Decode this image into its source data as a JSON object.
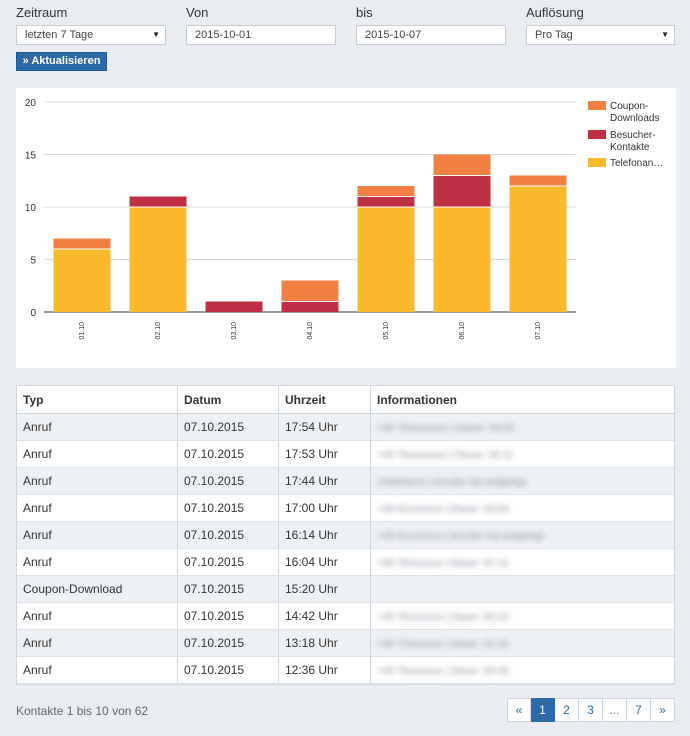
{
  "filters": {
    "zeitraum": {
      "label": "Zeitraum",
      "value": "letzten 7 Tage"
    },
    "von": {
      "label": "Von",
      "value": "2015-10-01"
    },
    "bis": {
      "label": "bis",
      "value": "2015-10-07"
    },
    "aufloesung": {
      "label": "Auflösung",
      "value": "Pro Tag"
    }
  },
  "update_button": "» Aktualisieren",
  "chart_data": {
    "type": "bar",
    "stacked": true,
    "categories": [
      "01.10",
      "02.10",
      "03.10",
      "04.10",
      "05.10",
      "06.10",
      "07.10"
    ],
    "series": [
      {
        "name": "Telefonan…",
        "color": "#f9b92b",
        "values": [
          6,
          10,
          0,
          0,
          10,
          10,
          12
        ]
      },
      {
        "name": "Besucher-Kontakte",
        "color": "#c03045",
        "values": [
          0,
          1,
          1,
          1,
          1,
          3,
          0
        ]
      },
      {
        "name": "Coupon-Downloads",
        "color": "#f38043",
        "values": [
          1,
          0,
          0,
          2,
          1,
          2,
          1
        ]
      }
    ],
    "yticks": [
      0,
      5,
      10,
      15,
      20
    ],
    "ylim": [
      0,
      20
    ],
    "grid": true,
    "legend": "right"
  },
  "table": {
    "headers": [
      "Typ",
      "Datum",
      "Uhrzeit",
      "Informationen"
    ],
    "rows": [
      {
        "typ": "Anruf",
        "datum": "07.10.2015",
        "uhrzeit": "17:54 Uhr",
        "info": "+49 76xxxxxxxx | Dauer: 03:03"
      },
      {
        "typ": "Anruf",
        "datum": "07.10.2015",
        "uhrzeit": "17:53 Uhr",
        "info": "+49 76xxxxxxxx | Dauer: 00:11"
      },
      {
        "typ": "Anruf",
        "datum": "07.10.2015",
        "uhrzeit": "17:44 Uhr",
        "info": "Unbekannt | Anrufer hat aufgelegt"
      },
      {
        "typ": "Anruf",
        "datum": "07.10.2015",
        "uhrzeit": "17:00 Uhr",
        "info": "+49 61xxxxxxx | Dauer: 00:54"
      },
      {
        "typ": "Anruf",
        "datum": "07.10.2015",
        "uhrzeit": "16:14 Uhr",
        "info": "+49 61xxxxxxx | Anrufer hat aufgelegt"
      },
      {
        "typ": "Anruf",
        "datum": "07.10.2015",
        "uhrzeit": "16:04 Uhr",
        "info": "+49 76xxxxxxx | Dauer: 01:12"
      },
      {
        "typ": "Coupon-Download",
        "datum": "07.10.2015",
        "uhrzeit": "15:20 Uhr",
        "info": ""
      },
      {
        "typ": "Anruf",
        "datum": "07.10.2015",
        "uhrzeit": "14:42 Uhr",
        "info": "+49 76xxxxxxx | Dauer: 00:10"
      },
      {
        "typ": "Anruf",
        "datum": "07.10.2015",
        "uhrzeit": "13:18 Uhr",
        "info": "+49 72xxxxxxx | Dauer: 01:10"
      },
      {
        "typ": "Anruf",
        "datum": "07.10.2015",
        "uhrzeit": "12:36 Uhr",
        "info": "+49 76xxxxxxx | Dauer: 00:45"
      }
    ]
  },
  "footer": {
    "summary": "Kontakte 1 bis 10 von 62",
    "pages": [
      "«",
      "1",
      "2",
      "3",
      "...",
      "7",
      "»"
    ],
    "active_page": "1"
  }
}
